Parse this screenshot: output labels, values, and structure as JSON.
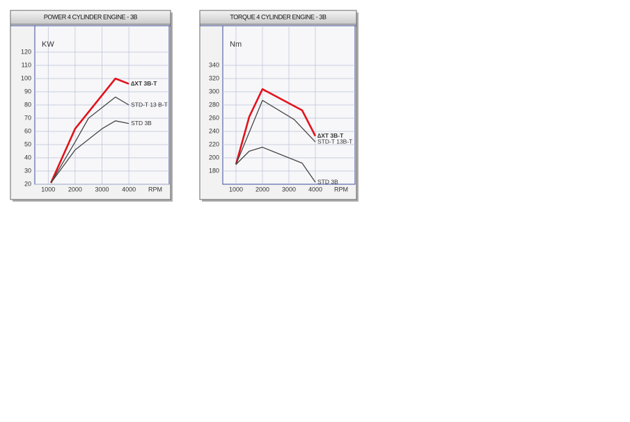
{
  "chart_data": [
    {
      "type": "line",
      "title": "POWER 4 CYLINDER ENGINE - 3B",
      "y_label": "KW",
      "x_label": "RPM",
      "xlim": [
        500,
        5500
      ],
      "xticks": [
        1000,
        2000,
        3000,
        4000
      ],
      "ylim": [
        20,
        140
      ],
      "yticks": [
        20,
        30,
        40,
        50,
        60,
        70,
        80,
        90,
        100,
        110,
        120
      ],
      "grid": true,
      "series": [
        {
          "name": "∆XT 3B-T",
          "color": "#e3121b",
          "label_color": "#2b3a9c",
          "x": [
            1100,
            2000,
            3500,
            4000
          ],
          "values": [
            21,
            62,
            100,
            96
          ]
        },
        {
          "name": "STD-T 13 B-T",
          "color": "#444444",
          "label_color": "#222222",
          "x": [
            1100,
            2000,
            2500,
            3500,
            4000
          ],
          "values": [
            21,
            52,
            70,
            86,
            80
          ]
        },
        {
          "name": "STD 3B",
          "color": "#444444",
          "label_color": "#222222",
          "x": [
            1100,
            2000,
            3000,
            3500,
            4000
          ],
          "values": [
            21,
            46,
            62,
            68,
            66
          ]
        }
      ]
    },
    {
      "type": "line",
      "title": "TORQUE 4 CYLINDER ENGINE - 3B",
      "y_label": "Nm",
      "x_label": "RPM",
      "xlim": [
        500,
        5500
      ],
      "xticks": [
        1000,
        2000,
        3000,
        4000
      ],
      "ylim": [
        160,
        400
      ],
      "yticks": [
        180,
        200,
        220,
        240,
        260,
        280,
        300,
        320,
        340
      ],
      "grid": true,
      "series": [
        {
          "name": "∆XT 3B-T",
          "color": "#e3121b",
          "label_color": "#2b3a9c",
          "x": [
            1000,
            1500,
            2000,
            3500,
            4000
          ],
          "values": [
            190,
            262,
            304,
            272,
            233
          ]
        },
        {
          "name": "STD-T 13B-T",
          "color": "#444444",
          "label_color": "#222222",
          "x": [
            1000,
            2000,
            3200,
            4000
          ],
          "values": [
            190,
            287,
            258,
            224
          ]
        },
        {
          "name": "STD 3B",
          "color": "#444444",
          "label_color": "#222222",
          "x": [
            1000,
            1500,
            2000,
            3500,
            4000
          ],
          "values": [
            190,
            210,
            216,
            192,
            163
          ]
        }
      ]
    }
  ]
}
